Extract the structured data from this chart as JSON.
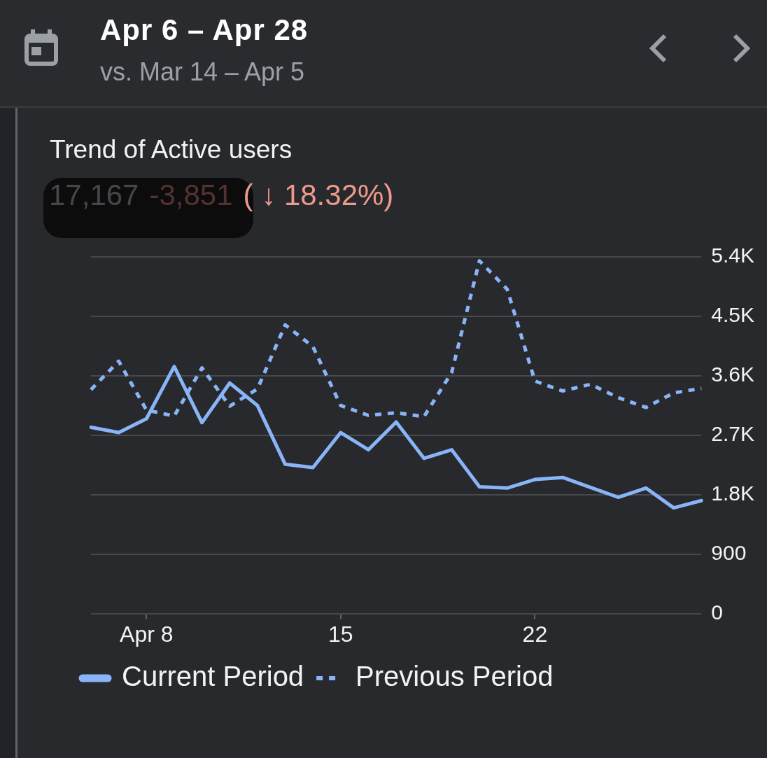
{
  "chart_data": {
    "type": "line",
    "title": "Trend of Active users",
    "annotations": [
      "Apr 6 – Apr 28",
      "vs. Mar 14 – Apr 5",
      "17,167",
      "-3,851",
      "( ↓ 18.32%)"
    ],
    "categories": [
      null,
      null,
      "Apr 8",
      null,
      null,
      null,
      null,
      null,
      null,
      "15",
      null,
      null,
      null,
      null,
      null,
      null,
      "22",
      null,
      null,
      null,
      null,
      null,
      null
    ],
    "series": [
      {
        "name": "Current Period",
        "color": "#8ab4f8",
        "line_style": "solid",
        "values": [
          2820,
          2740,
          2950,
          3740,
          2890,
          3490,
          3150,
          2260,
          2210,
          2740,
          2480,
          2900,
          2350,
          2480,
          1920,
          1900,
          2030,
          2060,
          1910,
          1760,
          1900,
          1600,
          1710
        ]
      },
      {
        "name": "Previous Period",
        "color": "#8ab4f8",
        "line_style": "dotted",
        "values": [
          3390,
          3820,
          3080,
          2990,
          3720,
          3140,
          3400,
          4370,
          4040,
          3150,
          3000,
          3040,
          2980,
          3650,
          5340,
          4910,
          3520,
          3370,
          3470,
          3270,
          3120,
          3340,
          3410
        ]
      }
    ],
    "ylim": [
      0,
      5400
    ],
    "yticks": [
      0,
      900,
      {
        "value": 1800,
        "label": "1.8K"
      },
      {
        "value": 2700,
        "label": "2.7K"
      },
      {
        "value": 3600,
        "label": "3.6K"
      },
      {
        "value": 4500,
        "label": "4.5K"
      },
      {
        "value": 5400,
        "label": "5.4K"
      }
    ],
    "grid": "y",
    "legend": "bottom",
    "marker": "none"
  }
}
